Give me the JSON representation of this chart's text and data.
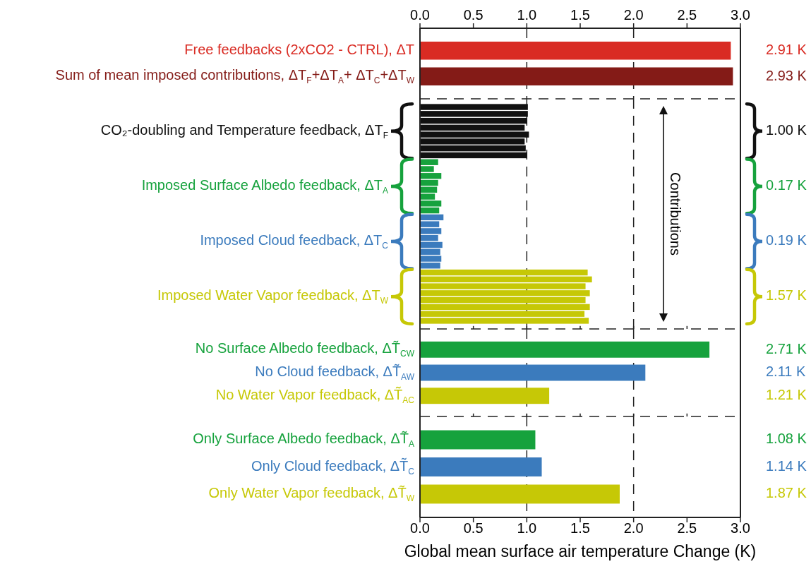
{
  "chart_data": [
    {
      "type": "bar",
      "orientation": "horizontal",
      "categories": [
        "Free feedbacks (2xCO2 - CTRL), ΔT",
        "Sum of mean imposed contributions, ΔT$_{F}$+ΔT$_{A}$+ ΔT$_{C}$+ΔT$_{W}$"
      ],
      "values": [
        2.91,
        2.93
      ],
      "colors": [
        "#d92b23",
        "#841b17"
      ],
      "value_labels": [
        "2.91 K",
        "2.93 K"
      ],
      "x2lim": [
        0,
        3
      ],
      "x2ticks": [
        {
          "value": 0,
          "label": "0.0"
        },
        {
          "value": 0.5,
          "label": "0.5"
        },
        {
          "value": 1,
          "label": "1.0"
        },
        {
          "value": 1.5,
          "label": "1.5"
        },
        {
          "value": 2,
          "label": "2.0"
        },
        {
          "value": 2.5,
          "label": "2.5"
        },
        {
          "value": 3,
          "label": "3.0"
        }
      ],
      "ref_lines": [
        {
          "axis": "x",
          "value": 1,
          "line_style": "dashed",
          "color": "#222222"
        },
        {
          "axis": "x",
          "value": 2,
          "line_style": "dashed",
          "color": "#222222"
        }
      ]
    },
    {
      "type": "bar",
      "orientation": "horizontal",
      "categories": [
        null,
        null,
        null,
        null,
        null,
        null,
        null,
        null,
        null,
        null,
        null,
        null,
        null,
        null,
        null,
        null,
        null,
        null,
        null,
        null,
        null,
        null,
        null,
        null,
        null,
        null,
        null,
        null,
        null,
        null,
        null,
        null
      ],
      "values": [
        1.01,
        1.01,
        1.0,
        0.98,
        1.02,
        0.98,
        0.99,
        1.0,
        0.17,
        0.13,
        0.2,
        0.17,
        0.16,
        0.14,
        0.2,
        0.18,
        0.22,
        0.18,
        0.2,
        0.17,
        0.21,
        0.19,
        0.2,
        0.19,
        1.57,
        1.61,
        1.55,
        1.59,
        1.55,
        1.59,
        1.54,
        1.58
      ],
      "colors": [
        "#111111",
        "#111111",
        "#111111",
        "#111111",
        "#111111",
        "#111111",
        "#111111",
        "#111111",
        "#16a23d",
        "#16a23d",
        "#16a23d",
        "#16a23d",
        "#16a23d",
        "#16a23d",
        "#16a23d",
        "#16a23d",
        "#3b7bbd",
        "#3b7bbd",
        "#3b7bbd",
        "#3b7bbd",
        "#3b7bbd",
        "#3b7bbd",
        "#3b7bbd",
        "#3b7bbd",
        "#c6c806",
        "#c6c806",
        "#c6c806",
        "#c6c806",
        "#c6c806",
        "#c6c806",
        "#c6c806",
        "#c6c806"
      ],
      "xlim": [
        0,
        3
      ],
      "xticks": [
        {
          "value": 0,
          "label": null
        },
        {
          "value": 0.5,
          "label": null
        },
        {
          "value": 1,
          "label": null
        },
        {
          "value": 1.5,
          "label": null
        },
        {
          "value": 2,
          "label": null
        },
        {
          "value": 2.5,
          "label": null
        },
        {
          "value": 3,
          "label": null
        }
      ],
      "tick_labels": false,
      "ref_lines": [
        {
          "axis": "x",
          "value": 1,
          "line_style": "dashed",
          "color": "#222222"
        },
        {
          "axis": "x",
          "value": 2,
          "line_style": "dashed",
          "color": "#222222"
        }
      ],
      "annotations": [
        "CO₂-doubling and Temperature feedback, ΔT$_{F}$",
        "Imposed Surface Albedo feedback, ΔT$_{A}$",
        "Imposed Cloud feedback, ΔT$_{C}$",
        "Imposed Water Vapor feedback, ΔT$_{W}$",
        "1.00 K",
        "0.17 K",
        "0.19 K",
        "1.57 K",
        "Contributions"
      ]
    },
    {
      "type": "bar",
      "orientation": "horizontal",
      "categories": [
        "No Surface Albedo feedback, ΔT̃$_{CW}$",
        "No Cloud feedback, ΔT̃$_{AW}$",
        "No Water Vapor feedback, ΔT̃$_{AC}$"
      ],
      "values": [
        2.71,
        2.11,
        1.21
      ],
      "colors": [
        "#16a23d",
        "#3b7bbd",
        "#c6c806"
      ],
      "value_labels": [
        "2.71 K",
        "2.11 K",
        "1.21 K"
      ],
      "xlim": [
        0,
        3
      ],
      "xticks": [
        {
          "value": 0,
          "label": null
        },
        {
          "value": 0.5,
          "label": null
        },
        {
          "value": 1,
          "label": null
        },
        {
          "value": 1.5,
          "label": null
        },
        {
          "value": 2,
          "label": null
        },
        {
          "value": 2.5,
          "label": null
        },
        {
          "value": 3,
          "label": null
        }
      ],
      "tick_labels": false,
      "ref_lines": [
        {
          "axis": "x",
          "value": 1,
          "line_style": "dashed",
          "color": "#222222"
        },
        {
          "axis": "x",
          "value": 2,
          "line_style": "dashed",
          "color": "#222222"
        }
      ]
    },
    {
      "type": "bar",
      "orientation": "horizontal",
      "categories": [
        "Only Surface Albedo feedback, ΔT̃$_{A}$",
        "Only Cloud feedback, ΔT̃$_{C}$",
        "Only Water Vapor feedback, ΔT̃$_{W}$"
      ],
      "values": [
        1.08,
        1.14,
        1.87
      ],
      "colors": [
        "#16a23d",
        "#3b7bbd",
        "#c6c806"
      ],
      "value_labels": [
        "1.08 K",
        "1.14 K",
        "1.87 K"
      ],
      "xlim": [
        0,
        3
      ],
      "xticks": [
        {
          "value": 0,
          "label": "0.0"
        },
        {
          "value": 0.5,
          "label": "0.5"
        },
        {
          "value": 1,
          "label": "1.0"
        },
        {
          "value": 1.5,
          "label": "1.5"
        },
        {
          "value": 2,
          "label": "2.0"
        },
        {
          "value": 2.5,
          "label": "2.5"
        },
        {
          "value": 3,
          "label": "3.0"
        }
      ],
      "xlabel": "Global mean surface air temperature Change (K)",
      "ref_lines": [
        {
          "axis": "x",
          "value": 1,
          "line_style": "dashed",
          "color": "#222222"
        },
        {
          "axis": "x",
          "value": 2,
          "line_style": "dashed",
          "color": "#222222"
        }
      ]
    }
  ]
}
